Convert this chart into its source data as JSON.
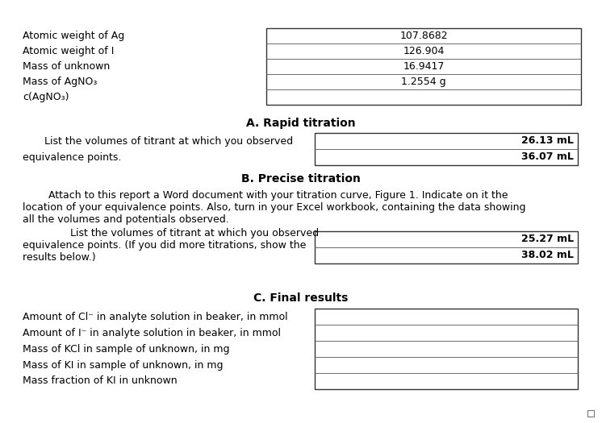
{
  "bg_color": "#ffffff",
  "section_a_title": "A. Rapid titration",
  "section_b_title": "B. Precise titration",
  "section_c_title": "C. Final results",
  "left_labels_top": [
    "Atomic weight of Ag",
    "Atomic weight of I",
    "Mass of unknown",
    "Mass of AgNO₃",
    "c(AgNO₃)"
  ],
  "left_values_top": [
    "107.8682",
    "126.904",
    "16.9417",
    "1.2554 g",
    ""
  ],
  "rapid_line1": "List the volumes of titrant at which you observed",
  "rapid_line2": "equivalence points.",
  "rapid_values": [
    "26.13 mL",
    "36.07 mL"
  ],
  "precise_para_line1": "        Attach to this report a Word document with your titration curve, Figure 1. Indicate on it the",
  "precise_para_line2": "location of your equivalence points. Also, turn in your Excel workbook, containing the data showing",
  "precise_para_line3": "all the volumes and potentials observed.",
  "precise_text_line1": "        List the volumes of titrant at which you observed",
  "precise_text_line2": "equivalence points. (If you did more titrations, show the",
  "precise_text_line3": "results below.)",
  "precise_values": [
    "25.27 mL",
    "38.02 mL"
  ],
  "final_labels": [
    "Amount of Cl⁻ in analyte solution in beaker, in mmol",
    "Amount of I⁻ in analyte solution in beaker, in mmol",
    "Mass of KCl in sample of unknown, in mg",
    "Mass of KI in sample of unknown, in mg",
    "Mass fraction of KI in unknown"
  ],
  "font_size": 9.0,
  "bold_font_size": 10.0
}
